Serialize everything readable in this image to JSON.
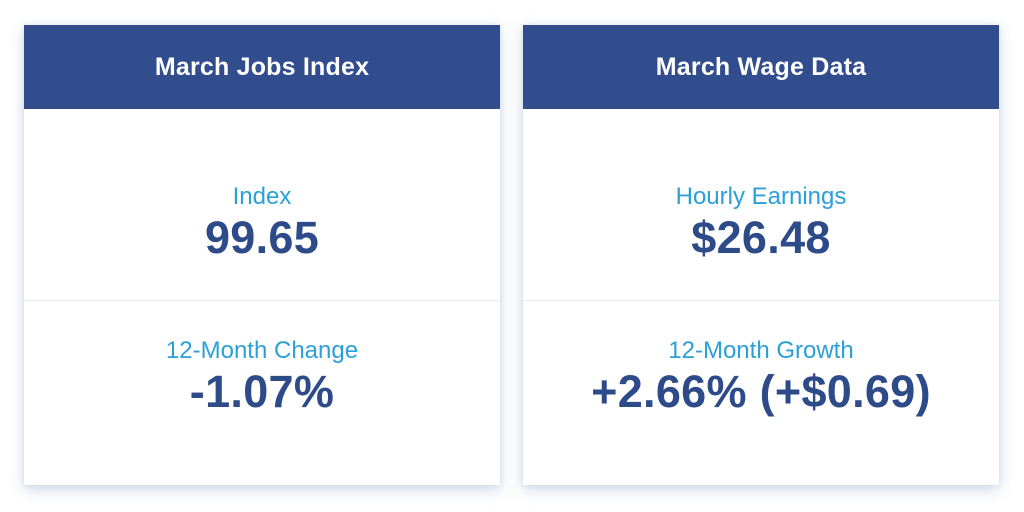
{
  "colors": {
    "header_bg": "#314d8d",
    "header_text": "#ffffff",
    "label": "#2b9fd8",
    "value": "#2d4a89",
    "divider": "#e6ebef",
    "card_bg": "#ffffff",
    "page_bg": "#ffffff"
  },
  "cards": [
    {
      "title": "March Jobs Index",
      "sections": [
        {
          "label": "Index",
          "value": "99.65"
        },
        {
          "label": "12-Month Change",
          "value": "-1.07%"
        }
      ]
    },
    {
      "title": "March Wage Data",
      "sections": [
        {
          "label": "Hourly Earnings",
          "value": "$26.48"
        },
        {
          "label": "12-Month Growth",
          "value": "+2.66% (+$0.69)"
        }
      ]
    }
  ]
}
